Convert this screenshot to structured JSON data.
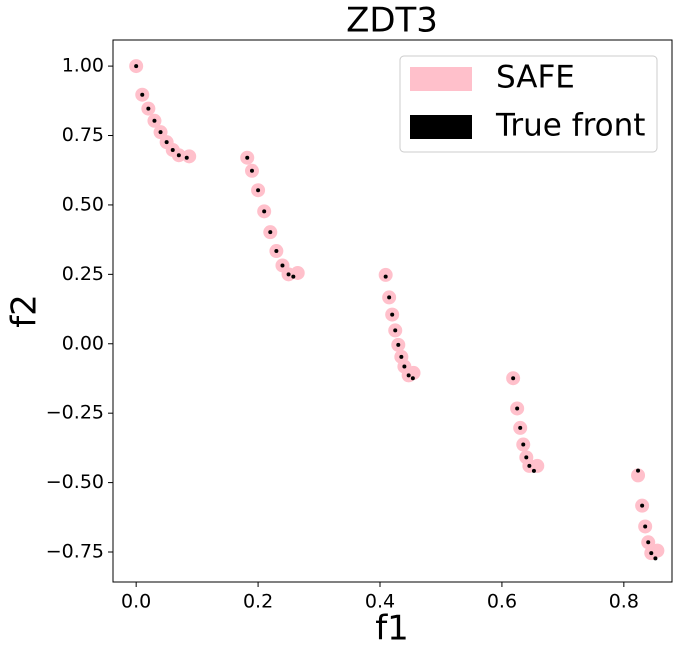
{
  "chart_data": {
    "type": "scatter",
    "title": "ZDT3",
    "x_label": "f1",
    "y_label": "f2",
    "xlim": [
      -0.038,
      0.879
    ],
    "ylim": [
      -0.858,
      1.094
    ],
    "xticks": [
      {
        "value": 0,
        "label": "0.0"
      },
      0.2,
      0.4,
      0.6,
      0.8
    ],
    "yticks": [
      {
        "value": 1,
        "label": "1.00"
      },
      0.75,
      {
        "value": 0.5,
        "label": "0.50"
      },
      0.25,
      {
        "value": 0,
        "label": "0.00"
      },
      {
        "value": -0.25,
        "label": "−0.25"
      },
      {
        "value": -0.5,
        "label": "−0.50"
      },
      {
        "value": -0.75,
        "label": "−0.75"
      }
    ],
    "legend": "upper right",
    "series": [
      {
        "name": "SAFE",
        "color": "#ffc0cb",
        "marker_size": 7,
        "x": [
          0,
          0.01,
          0.02,
          0.03,
          0.04,
          0.05,
          0.06,
          0.07,
          0.087,
          0.1822,
          0.19,
          0.2,
          0.21,
          0.22,
          0.23,
          0.24,
          0.25,
          0.265,
          0.4093,
          0.415,
          0.42,
          0.425,
          0.43,
          0.435,
          0.44,
          0.447,
          0.455,
          0.6184,
          0.625,
          0.63,
          0.635,
          0.64,
          0.645,
          0.658,
          0.8233,
          0.83,
          0.835,
          0.84,
          0.845,
          0.855
        ],
        "values": [
          1,
          0.897,
          0.847,
          0.803,
          0.762,
          0.726,
          0.698,
          0.679,
          0.675,
          0.67,
          0.623,
          0.553,
          0.477,
          0.402,
          0.334,
          0.282,
          0.25,
          0.255,
          0.248,
          0.167,
          0.105,
          0.048,
          -0.004,
          -0.047,
          -0.082,
          -0.114,
          -0.105,
          -0.124,
          -0.233,
          -0.303,
          -0.363,
          -0.409,
          -0.44,
          -0.44,
          -0.474,
          -0.583,
          -0.658,
          -0.715,
          -0.754,
          -0.745
        ]
      },
      {
        "name": "True front",
        "color": "#000000",
        "marker_size": 2,
        "x": [
          0,
          0.01,
          0.02,
          0.03,
          0.04,
          0.05,
          0.06,
          0.07,
          0.083,
          0.1822,
          0.19,
          0.2,
          0.21,
          0.22,
          0.23,
          0.24,
          0.25,
          0.2578,
          0.4093,
          0.415,
          0.42,
          0.425,
          0.43,
          0.435,
          0.44,
          0.447,
          0.4539,
          0.6184,
          0.625,
          0.63,
          0.635,
          0.64,
          0.645,
          0.6525,
          0.8233,
          0.83,
          0.835,
          0.84,
          0.845,
          0.8518
        ],
        "values": [
          1,
          0.897,
          0.847,
          0.803,
          0.762,
          0.726,
          0.698,
          0.679,
          0.67,
          0.67,
          0.623,
          0.553,
          0.477,
          0.402,
          0.334,
          0.282,
          0.25,
          0.242,
          0.242,
          0.167,
          0.105,
          0.048,
          -0.004,
          -0.047,
          -0.082,
          -0.114,
          -0.124,
          -0.124,
          -0.233,
          -0.303,
          -0.363,
          -0.409,
          -0.44,
          -0.458,
          -0.457,
          -0.583,
          -0.658,
          -0.715,
          -0.754,
          -0.773
        ]
      }
    ]
  }
}
